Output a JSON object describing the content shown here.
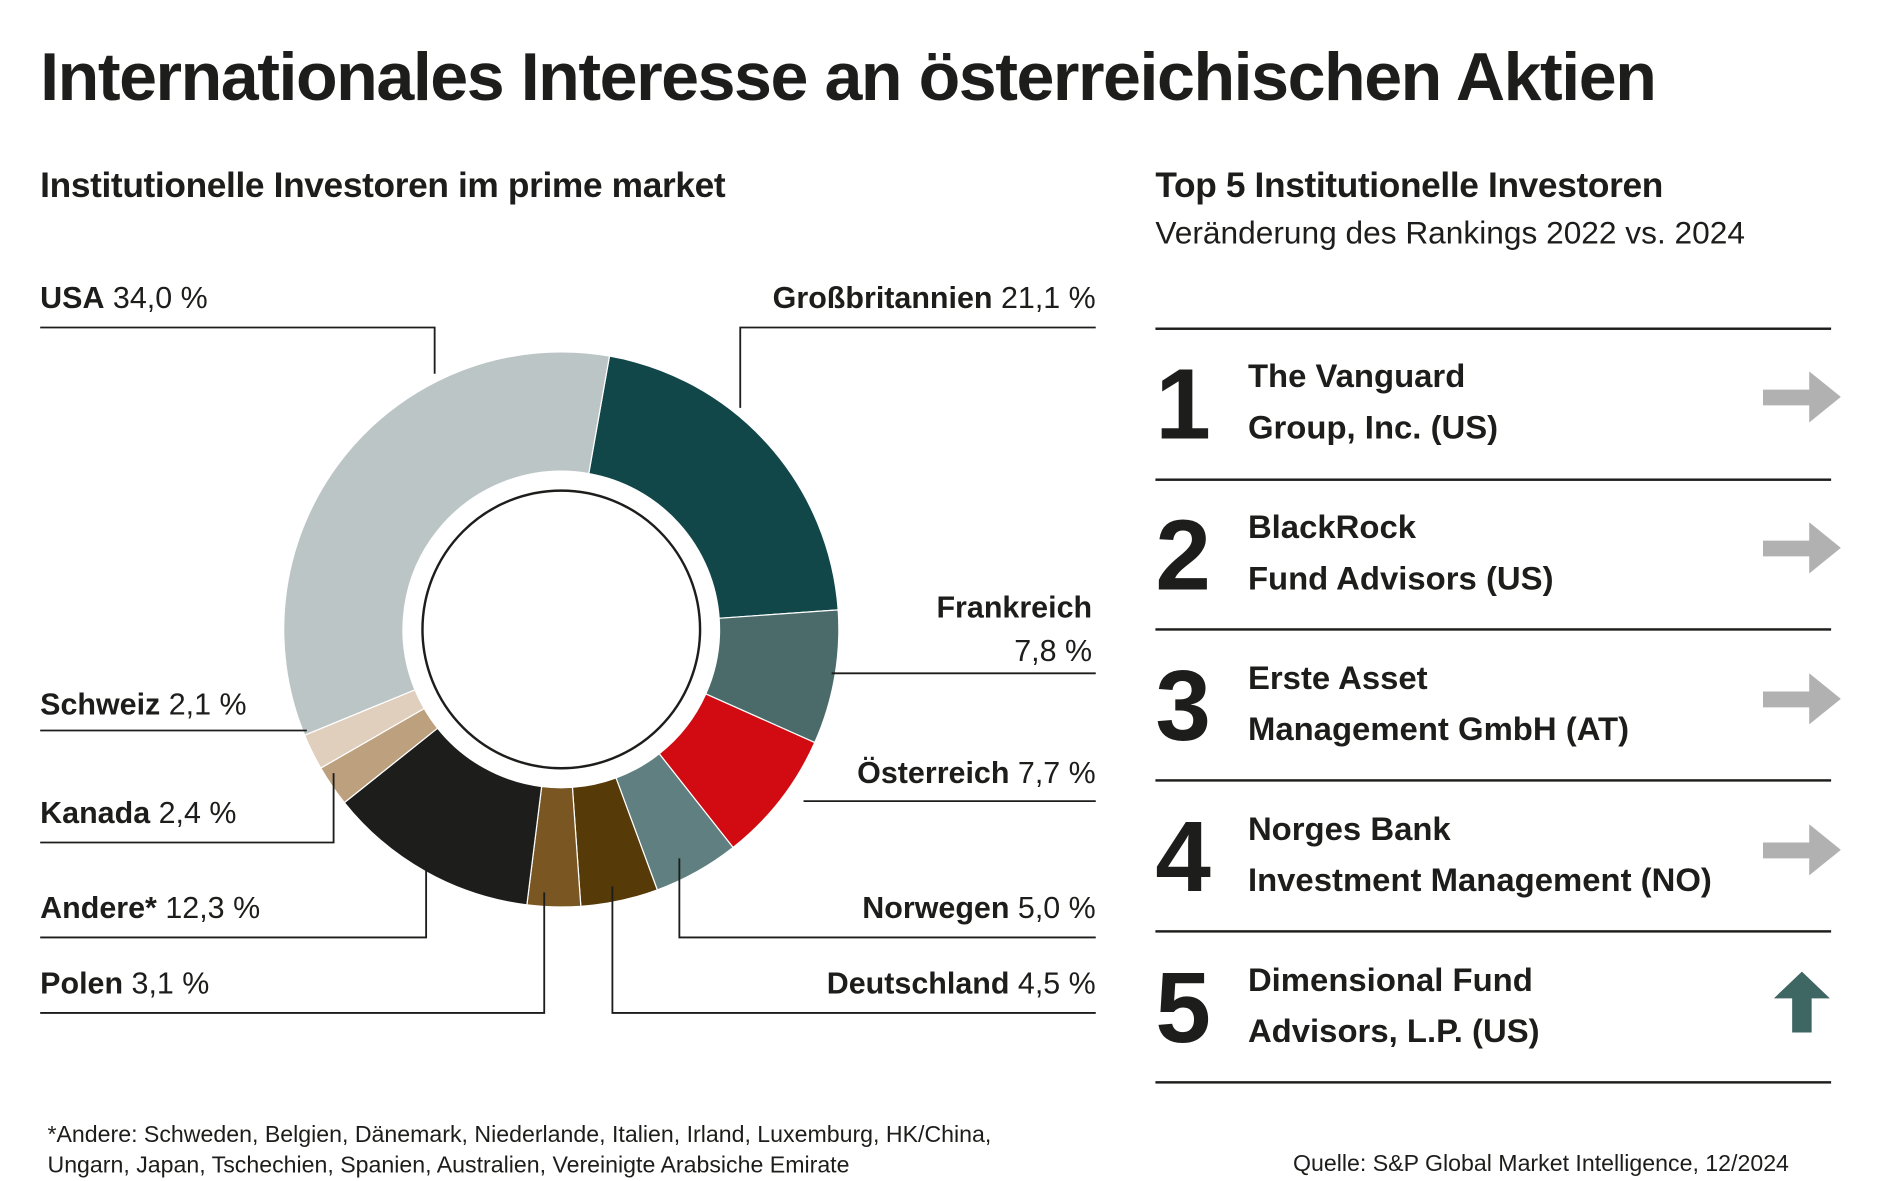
{
  "title": "Internationales Interesse an österreichischen Aktien",
  "chart_data": {
    "type": "pie",
    "variant": "donut",
    "title": "Institutionelle Investoren im prime market",
    "unit": "%",
    "slices": [
      {
        "label": "Großbritannien",
        "value": 21.1,
        "value_label": "21,1 %",
        "color": "#12474a"
      },
      {
        "label": "Frankreich",
        "value": 7.8,
        "value_label": "7,8 %",
        "color": "#4a6b6a"
      },
      {
        "label": "Österreich",
        "value": 7.7,
        "value_label": "7,7 %",
        "color": "#d20a11"
      },
      {
        "label": "Norwegen",
        "value": 5.0,
        "value_label": "5,0 %",
        "color": "#5f7f80"
      },
      {
        "label": "Deutschland",
        "value": 4.5,
        "value_label": "4,5 %",
        "color": "#563a08"
      },
      {
        "label": "Polen",
        "value": 3.1,
        "value_label": "3,1 %",
        "color": "#7a5623"
      },
      {
        "label": "Andere*",
        "value": 12.3,
        "value_label": "12,3 %",
        "color": "#1d1d1b"
      },
      {
        "label": "Kanada",
        "value": 2.4,
        "value_label": "2,4 %",
        "color": "#bda17f"
      },
      {
        "label": "Schweiz",
        "value": 2.1,
        "value_label": "2,1 %",
        "color": "#e0cfbd"
      },
      {
        "label": "USA",
        "value": 34.0,
        "value_label": "34,0 %",
        "color": "#bcc5c5"
      }
    ]
  },
  "ranking": {
    "title": "Top 5 Institutionelle Investoren",
    "subtitle": "Veränderung des Rankings 2022 vs. 2024",
    "rows": [
      {
        "rank": "1",
        "line1": "The Vanguard",
        "line2": "Group, Inc. (US)",
        "change": "unchanged",
        "arrow_color": "#b1b1b1"
      },
      {
        "rank": "2",
        "line1": "BlackRock",
        "line2": "Fund Advisors (US)",
        "change": "unchanged",
        "arrow_color": "#b1b1b1"
      },
      {
        "rank": "3",
        "line1": "Erste Asset",
        "line2": "Management GmbH (AT)",
        "change": "unchanged",
        "arrow_color": "#b1b1b1"
      },
      {
        "rank": "4",
        "line1": "Norges Bank",
        "line2": "Investment Management (NO)",
        "change": "unchanged",
        "arrow_color": "#b1b1b1"
      },
      {
        "rank": "5",
        "line1": "Dimensional Fund",
        "line2": "Advisors, L.P. (US)",
        "change": "up",
        "arrow_color": "#3e6663"
      }
    ]
  },
  "footnote": {
    "line1": "*Andere: Schweden, Belgien, Dänemark, Niederlande, Italien, Irland, Luxemburg, HK/China,",
    "line2": "Ungarn, Japan, Tschechien, Spanien, Australien, Vereinigte Arabsiche Emirate"
  },
  "source": "Quelle: S&P Global Market Intelligence, 12/2024"
}
